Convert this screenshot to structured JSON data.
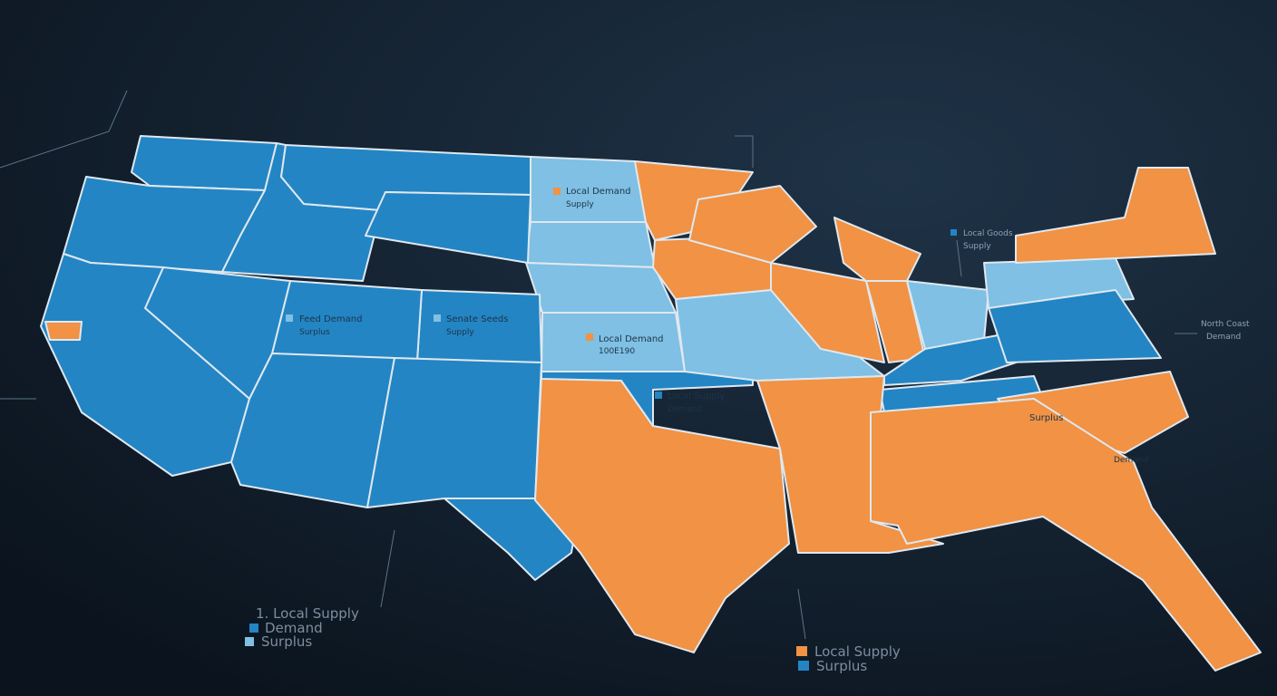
{
  "callouts": [
    {
      "label": "Local Demand",
      "sub": "Supply"
    },
    {
      "label": "Local Demand",
      "sub": "100E190"
    },
    {
      "label": "Feed Demand",
      "sub": "Surplus"
    },
    {
      "label": "Senate Seeds",
      "sub": "Supply"
    },
    {
      "label": "Local Supply",
      "sub": "Demand"
    },
    {
      "label": "Surplus",
      "sub": "Demand"
    },
    {
      "label": "Local Goods",
      "sub": "Supply"
    },
    {
      "label": "North Coast",
      "sub": "Demand"
    }
  ],
  "legend_left": {
    "title": "1. Local Supply",
    "items": [
      "Demand",
      "Surplus"
    ]
  },
  "legend_right": {
    "items": [
      "Local Supply",
      "Surplus"
    ]
  }
}
